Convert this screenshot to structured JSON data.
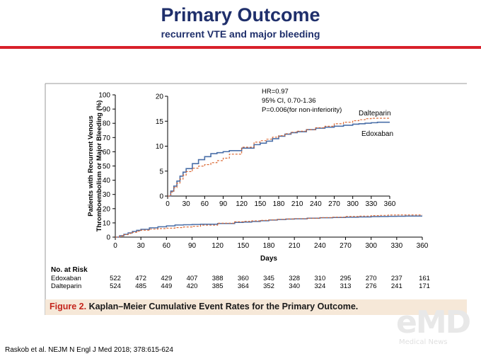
{
  "header": {
    "title": "Primary Outcome",
    "subtitle": "recurrent VTE and major bleeding"
  },
  "colors": {
    "title": "#1f2f6b",
    "accent_bar": "#d8202a",
    "edoxaban": "#4a6fa8",
    "dalteparin": "#d9622b",
    "caption_bg": "#f6e8d8",
    "caption_fig": "#c4251c"
  },
  "caption": {
    "figure_label": "Figure 2.",
    "text": "Kaplan–Meier Cumulative Event Rates for the Primary Outcome."
  },
  "reference": "Raskob et al. NEJM N Engl J Med 2018; 378:615-624",
  "logo": {
    "text": "eMD",
    "sub": "Medical News"
  },
  "chart_data": [
    {
      "type": "line",
      "role": "main",
      "xlabel": "Days",
      "ylabel_line1": "Patients with Recurrent Venous",
      "ylabel_line2": "Thromboembolism or Major Bleeding (%)",
      "xlim": [
        0,
        360
      ],
      "ylim": [
        0,
        100
      ],
      "xticks": [
        0,
        30,
        60,
        90,
        120,
        150,
        180,
        210,
        240,
        270,
        300,
        330,
        360
      ],
      "yticks": [
        0,
        10,
        20,
        30,
        40,
        50,
        60,
        70,
        80,
        90,
        100
      ],
      "series": [
        {
          "name": "Edoxaban",
          "style": "solid",
          "x": [
            0,
            5,
            10,
            15,
            20,
            25,
            30,
            40,
            50,
            60,
            70,
            80,
            90,
            100,
            120,
            140,
            150,
            160,
            170,
            180,
            190,
            200,
            210,
            225,
            240,
            255,
            270,
            285,
            300,
            310,
            320,
            330,
            340,
            360
          ],
          "y": [
            0,
            1,
            2,
            3,
            4,
            4.8,
            5.5,
            6.5,
            7.3,
            7.9,
            8.5,
            8.7,
            8.9,
            9.1,
            9.6,
            10.3,
            10.6,
            11,
            11.5,
            12,
            12.4,
            12.7,
            12.9,
            13.3,
            13.6,
            13.8,
            14,
            14.2,
            14.4,
            14.5,
            14.6,
            14.7,
            14.8,
            14.8
          ]
        },
        {
          "name": "Dalteparin",
          "style": "dashed",
          "x": [
            0,
            5,
            10,
            15,
            20,
            25,
            30,
            40,
            50,
            60,
            70,
            80,
            90,
            100,
            120,
            140,
            150,
            160,
            170,
            180,
            190,
            200,
            210,
            225,
            240,
            255,
            270,
            285,
            300,
            310,
            320,
            330,
            340,
            360
          ],
          "y": [
            0,
            0.8,
            1.7,
            2.6,
            3.4,
            4.2,
            4.9,
            5.6,
            6,
            6.3,
            6.7,
            7.1,
            7.6,
            8.4,
            9.8,
            10.8,
            11.1,
            11.4,
            11.8,
            12.1,
            12.5,
            12.8,
            13,
            13.3,
            13.7,
            14,
            14.5,
            14.8,
            15.1,
            15.3,
            15.5,
            15.6,
            15.6,
            15.6
          ]
        }
      ]
    },
    {
      "type": "line",
      "role": "inset",
      "xlim": [
        0,
        360
      ],
      "ylim": [
        0,
        20
      ],
      "xticks": [
        0,
        30,
        60,
        90,
        120,
        150,
        180,
        210,
        240,
        270,
        300,
        330,
        360
      ],
      "yticks": [
        0,
        5,
        10,
        15,
        20
      ],
      "annotation": [
        "HR=0.97",
        "95% CI,  0.70-1.36",
        "P=0.006(for non-inferiority)"
      ],
      "series_labels": [
        "Dalteparin",
        "Edoxaban"
      ]
    }
  ],
  "risk_table": {
    "title": "No. at Risk",
    "rows": [
      {
        "name": "Edoxaban",
        "values": [
          "522",
          "472",
          "429",
          "407",
          "388",
          "360",
          "345",
          "328",
          "310",
          "295",
          "270",
          "237",
          "161"
        ]
      },
      {
        "name": "Dalteparin",
        "values": [
          "524",
          "485",
          "449",
          "420",
          "385",
          "364",
          "352",
          "340",
          "324",
          "313",
          "276",
          "241",
          "171"
        ]
      }
    ]
  }
}
